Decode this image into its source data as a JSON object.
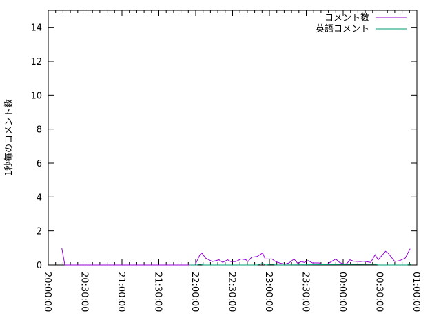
{
  "chart_data": {
    "type": "line",
    "title": "",
    "xlabel": "",
    "ylabel": "1秒毎のコメント数",
    "xlim": [
      "20:00:00",
      "01:00:00"
    ],
    "ylim": [
      0,
      15
    ],
    "x_ticks": [
      "20:00:00",
      "20:30:00",
      "21:00:00",
      "21:30:00",
      "22:00:00",
      "22:30:00",
      "23:00:00",
      "23:30:00",
      "00:00:00",
      "00:30:00",
      "01:00:00"
    ],
    "y_ticks": [
      "0",
      "2",
      "4",
      "6",
      "8",
      "10",
      "12",
      "14"
    ],
    "grid": false,
    "legend_position": "top-right",
    "series": [
      {
        "name": "コメント数",
        "color": "#9400d3",
        "points": [
          [
            "20:11:00",
            1.0
          ],
          [
            "20:13:30",
            0
          ],
          [
            "21:55:00",
            0
          ],
          [
            "21:59:30",
            0
          ],
          [
            "22:03:30",
            0.6
          ],
          [
            "22:05:00",
            0.7
          ],
          [
            "22:08:00",
            0.4
          ],
          [
            "22:13:30",
            0.2
          ],
          [
            "22:19:00",
            0.3
          ],
          [
            "22:22:00",
            0.15
          ],
          [
            "22:26:00",
            0.3
          ],
          [
            "22:28:30",
            0.2
          ],
          [
            "22:32:30",
            0.2
          ],
          [
            "22:37:00",
            0.35
          ],
          [
            "22:41:00",
            0.3
          ],
          [
            "22:42:30",
            0.2
          ],
          [
            "22:45:30",
            0.45
          ],
          [
            "22:50:00",
            0.5
          ],
          [
            "22:54:30",
            0.7
          ],
          [
            "22:56:30",
            0.35
          ],
          [
            "23:02:00",
            0.35
          ],
          [
            "23:05:00",
            0.2
          ],
          [
            "23:09:00",
            0.1
          ],
          [
            "23:12:30",
            0.05
          ],
          [
            "23:16:00",
            0.12
          ],
          [
            "23:20:00",
            0.35
          ],
          [
            "23:23:00",
            0.1
          ],
          [
            "23:26:00",
            0.2
          ],
          [
            "23:28:30",
            0.15
          ],
          [
            "23:31:30",
            0.25
          ],
          [
            "23:35:00",
            0.12
          ],
          [
            "23:40:30",
            0.12
          ],
          [
            "23:42:30",
            0.05
          ],
          [
            "23:47:00",
            0.05
          ],
          [
            "23:54:00",
            0.35
          ],
          [
            "23:57:00",
            0.15
          ],
          [
            "00:01:00",
            0.05
          ],
          [
            "00:03:00",
            0.08
          ],
          [
            "00:05:30",
            0.3
          ],
          [
            "00:08:30",
            0.22
          ],
          [
            "00:14:00",
            0.2
          ],
          [
            "00:16:30",
            0.22
          ],
          [
            "00:22:30",
            0.15
          ],
          [
            "00:26:00",
            0.6
          ],
          [
            "00:28:30",
            0.3
          ],
          [
            "00:34:30",
            0.8
          ],
          [
            "00:36:30",
            0.7
          ],
          [
            "00:42:00",
            0.2
          ],
          [
            "00:46:00",
            0.25
          ],
          [
            "00:50:30",
            0.4
          ],
          [
            "00:54:30",
            0.95
          ]
        ]
      },
      {
        "name": "英語コメント",
        "color": "#009e73",
        "points": [
          [
            "21:55:00",
            0
          ],
          [
            "22:01:00",
            0
          ],
          [
            "22:03:30",
            0.05
          ],
          [
            "22:06:00",
            0
          ],
          [
            "22:50:00",
            0
          ],
          [
            "22:54:30",
            0.1
          ],
          [
            "22:57:00",
            0
          ],
          [
            "23:02:00",
            0.05
          ],
          [
            "23:05:00",
            0
          ],
          [
            "00:26:00",
            0.05
          ],
          [
            "00:28:30",
            0
          ],
          [
            "00:52:00",
            0
          ],
          [
            "00:54:30",
            0.05
          ],
          [
            "00:55:30",
            0
          ]
        ]
      }
    ]
  }
}
